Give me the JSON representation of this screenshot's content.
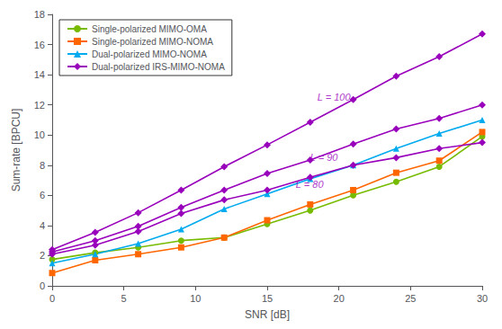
{
  "chart_data": {
    "type": "line",
    "xlabel": "SNR [dB]",
    "ylabel": "Sum-rate [BPCU]",
    "x": [
      0,
      3,
      6,
      9,
      12,
      15,
      18,
      21,
      24,
      27,
      30
    ],
    "series": [
      {
        "name": "Single-polarized MIMO-OMA",
        "color": "#77bb00",
        "marker": "circle",
        "values": [
          1.75,
          2.2,
          2.55,
          3.0,
          3.2,
          4.1,
          5.0,
          6.0,
          6.9,
          7.9,
          9.9
        ]
      },
      {
        "name": "Single-polarized MIMO-NOMA",
        "color": "#ff6600",
        "marker": "square",
        "values": [
          0.85,
          1.7,
          2.1,
          2.55,
          3.2,
          4.35,
          5.4,
          6.35,
          7.5,
          8.3,
          10.2
        ]
      },
      {
        "name": "Dual-polarized MIMO-NOMA",
        "color": "#00aaee",
        "marker": "triangle",
        "values": [
          1.5,
          2.1,
          2.8,
          3.75,
          5.1,
          6.1,
          7.1,
          8.0,
          9.1,
          10.1,
          11.0
        ]
      },
      {
        "color": "#9900bb",
        "marker": "diamond",
        "values": [
          2.1,
          2.7,
          3.6,
          4.8,
          5.7,
          6.35,
          7.2,
          8.0,
          8.5,
          9.1,
          9.5
        ]
      },
      {
        "color": "#9900bb",
        "marker": "diamond",
        "values": [
          2.25,
          3.0,
          3.95,
          5.2,
          6.35,
          7.45,
          8.35,
          9.4,
          10.4,
          11.1,
          12.0
        ]
      },
      {
        "name": "Dual-polarized IRS-MIMO-NOMA",
        "color": "#9900bb",
        "marker": "diamond",
        "values": [
          2.4,
          3.55,
          4.85,
          6.35,
          7.9,
          9.35,
          10.85,
          12.35,
          13.9,
          15.2,
          16.7
        ]
      }
    ],
    "annotations": [
      {
        "text": "L = 80",
        "x": 17.0,
        "y": 6.75,
        "color": "#9900bb"
      },
      {
        "text": "L = 90",
        "x": 18.0,
        "y": 8.5,
        "color": "#9900bb"
      },
      {
        "text": "L = 100",
        "x": 18.5,
        "y": 12.5,
        "color": "#9900bb"
      }
    ],
    "xlim": [
      0,
      30
    ],
    "xticks": [
      0,
      5,
      10,
      15,
      20,
      25,
      30
    ],
    "ylim": [
      0,
      18
    ],
    "yticks": [
      0,
      2,
      4,
      6,
      8,
      10,
      12,
      14,
      16,
      18
    ],
    "grid": false,
    "legend": "upper left"
  }
}
